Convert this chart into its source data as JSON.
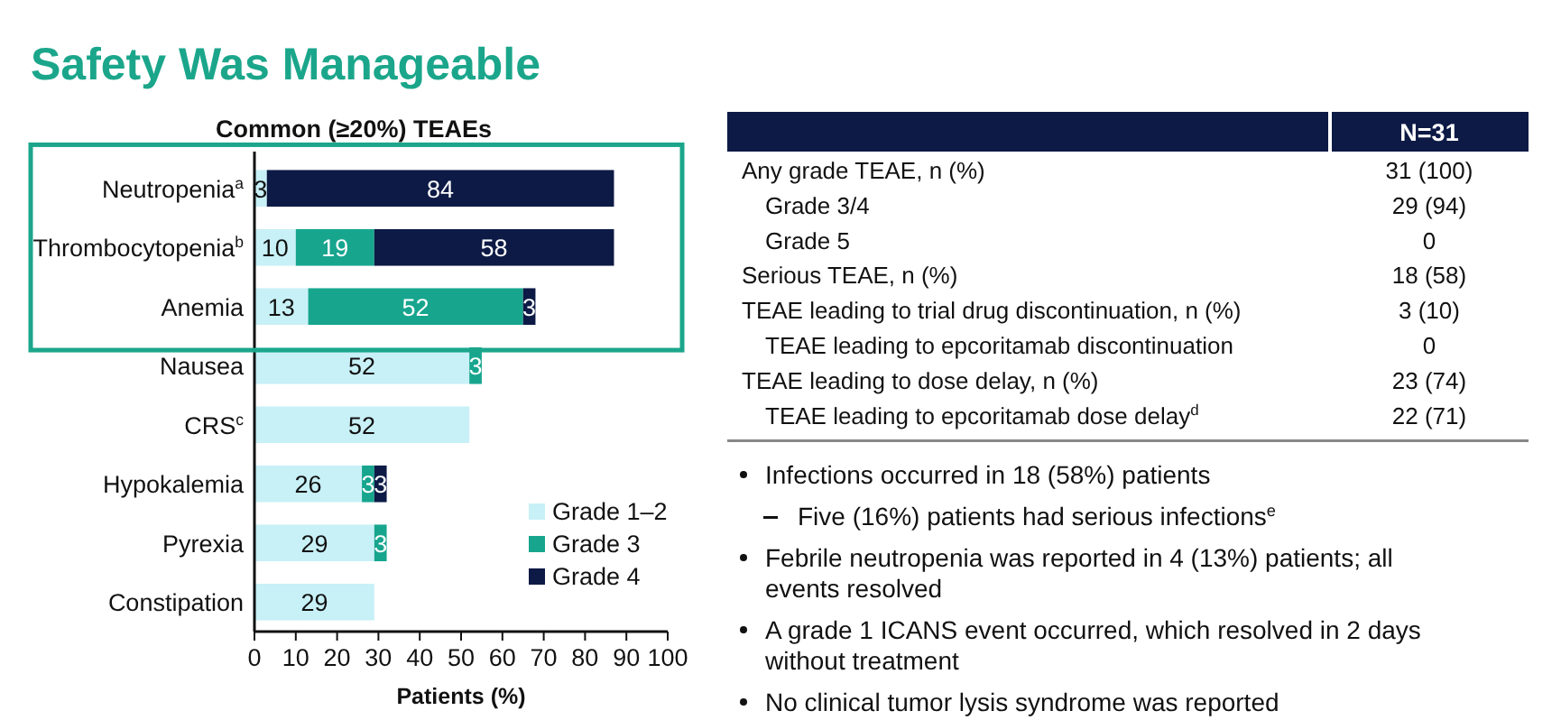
{
  "chart_data": [
    {
      "type": "bar",
      "orientation": "horizontal",
      "stacked": true,
      "title": "Safety Was Manageable",
      "subtitle": "Common (≥20%) TEAEs",
      "xlabel": "Patients (%)",
      "categories": [
        "Neutropenia$^{a}$",
        "Thrombocytopenia$^{b}$",
        "Anemia",
        "Nausea",
        "CRS$^{c}$",
        "Hypokalemia",
        "Pyrexia",
        "Constipation"
      ],
      "series": [
        {
          "name": "Grade 1–2",
          "color": "#c8f0f7",
          "values": [
            3,
            10,
            13,
            52,
            52,
            26,
            29,
            29
          ],
          "value_labels": [
            "3",
            "10",
            "13",
            "52",
            "52",
            "26",
            "29",
            "29"
          ]
        },
        {
          "name": "Grade 3",
          "color": "#17a58e",
          "values": [
            0,
            19,
            52,
            3,
            0,
            3,
            3,
            0
          ],
          "value_labels": [
            null,
            "19",
            "52",
            "3",
            null,
            "3",
            "3",
            null
          ]
        },
        {
          "name": "Grade 4",
          "color": "#0c1a45",
          "values": [
            84,
            58,
            3,
            0,
            0,
            3,
            0,
            0
          ],
          "value_labels": [
            "84",
            "58",
            "3",
            null,
            null,
            "3",
            null,
            null
          ]
        }
      ],
      "xlim": [
        0,
        100
      ],
      "xticks": [
        0,
        10,
        20,
        30,
        40,
        50,
        60,
        70,
        80,
        90,
        100
      ],
      "legend": "bottom right",
      "grid": false
    },
    {
      "type": "other",
      "title": "N=31",
      "categories": [
        "Any grade TEAE, n (%)",
        "  Grade 3/4",
        "  Grade 5",
        "Serious TEAE, n (%)",
        "TEAE leading to trial drug discontinuation, n (%)",
        "  TEAE leading to epcoritamab discontinuation",
        "TEAE leading to dose delay, n (%)",
        "  TEAE leading to epcoritamab dose delay$^{d}$"
      ],
      "value_labels": [
        "31 (100)",
        "29 (94)",
        "0",
        "18 (58)",
        "3 (10)",
        "0",
        "23 (74)",
        "22 (71)"
      ],
      "annotations": [
        "Infections occurred in 18 (58%) patients",
        "  Five (16%) patients had serious infections$^{e}$",
        "Febrile neutropenia was reported in 4 (13%) patients; all events resolved",
        "A grade 1 ICANS event occurred, which resolved in 2 days without treatment",
        "No clinical tumor lysis syndrome was reported"
      ]
    }
  ]
}
